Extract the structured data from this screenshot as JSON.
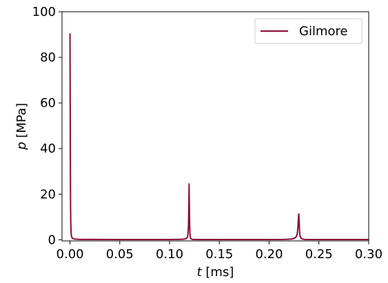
{
  "chart_data": {
    "type": "line",
    "title": "",
    "xlabel": "t [ms]",
    "ylabel": "p [MPa]",
    "xlabel_var": "t",
    "xlabel_unit": " [ms]",
    "ylabel_var": "p",
    "ylabel_unit": " [MPa]",
    "xlim": [
      -0.008,
      0.3
    ],
    "ylim": [
      -0.5,
      100
    ],
    "x_ticks": [
      0.0,
      0.05,
      0.1,
      0.15,
      0.2,
      0.25,
      0.3
    ],
    "x_tick_labels": [
      "0.00",
      "0.05",
      "0.10",
      "0.15",
      "0.20",
      "0.25",
      "0.30"
    ],
    "y_ticks": [
      0,
      20,
      40,
      60,
      80,
      100
    ],
    "y_tick_labels": [
      "0",
      "20",
      "40",
      "60",
      "80",
      "100"
    ],
    "grid": false,
    "legend_position": "top-right",
    "series": [
      {
        "name": "Gilmore",
        "color": "#8b0a32",
        "x": [
          0.0,
          0.0002,
          0.0004,
          0.0006,
          0.0008,
          0.001,
          0.0013,
          0.0016,
          0.002,
          0.003,
          0.005,
          0.01,
          0.05,
          0.1,
          0.11,
          0.115,
          0.117,
          0.118,
          0.1185,
          0.119,
          0.1193,
          0.1196,
          0.1199,
          0.1202,
          0.1205,
          0.1208,
          0.1212,
          0.1218,
          0.123,
          0.126,
          0.13,
          0.15,
          0.2,
          0.215,
          0.222,
          0.225,
          0.227,
          0.228,
          0.2285,
          0.229,
          0.2295,
          0.2298,
          0.2301,
          0.2304,
          0.2308,
          0.2314,
          0.2322,
          0.2335,
          0.236,
          0.24,
          0.26,
          0.3
        ],
        "y": [
          90.5,
          60.0,
          30.0,
          14.0,
          7.0,
          4.0,
          2.2,
          1.4,
          0.9,
          0.5,
          0.3,
          0.15,
          0.1,
          0.1,
          0.15,
          0.3,
          0.6,
          1.3,
          2.5,
          6.0,
          13.0,
          24.5,
          14.0,
          6.0,
          2.5,
          1.2,
          0.6,
          0.35,
          0.2,
          0.12,
          0.1,
          0.1,
          0.1,
          0.15,
          0.3,
          0.6,
          1.2,
          2.2,
          3.5,
          6.0,
          10.0,
          11.3,
          9.0,
          5.0,
          2.5,
          1.2,
          0.6,
          0.3,
          0.15,
          0.1,
          0.1,
          0.1
        ]
      }
    ]
  }
}
